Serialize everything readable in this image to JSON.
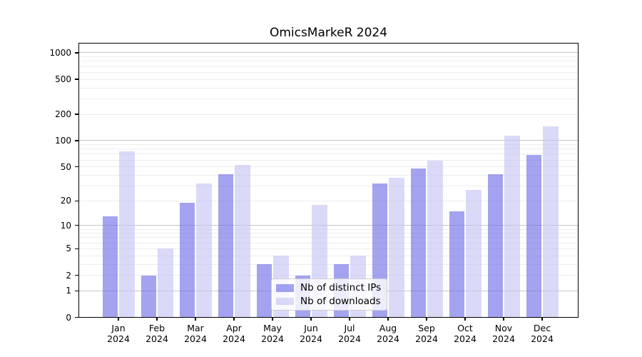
{
  "chart_data": {
    "type": "bar",
    "title": "OmicsMarkeR 2024",
    "categories": [
      "Jan 2024",
      "Feb 2024",
      "Mar 2024",
      "Apr 2024",
      "May 2024",
      "Jun 2024",
      "Jul 2024",
      "Aug 2024",
      "Sep 2024",
      "Oct 2024",
      "Nov 2024",
      "Dec 2024"
    ],
    "series": [
      {
        "name": "Nb of distinct IPs",
        "color": "#a3a3f0",
        "values": [
          13,
          2,
          19,
          41,
          3,
          2,
          3,
          32,
          48,
          15,
          41,
          69
        ]
      },
      {
        "name": "Nb of downloads",
        "color": "#dadaf8",
        "values": [
          75,
          5,
          32,
          53,
          4,
          18,
          4,
          37,
          59,
          27,
          113,
          145
        ]
      }
    ],
    "xlabel": "",
    "ylabel": "",
    "yscale": "log(1+x)",
    "yticks": [
      0,
      1,
      2,
      5,
      10,
      20,
      50,
      100,
      200,
      500,
      1000
    ],
    "ylim": [
      0,
      1296
    ],
    "grid": "horizontal major + log minors",
    "legend_position": "lower center",
    "major_grid_color": "#c6c6c6",
    "minor_grid_color": "#ededed",
    "bar_alpha": 0.6
  }
}
